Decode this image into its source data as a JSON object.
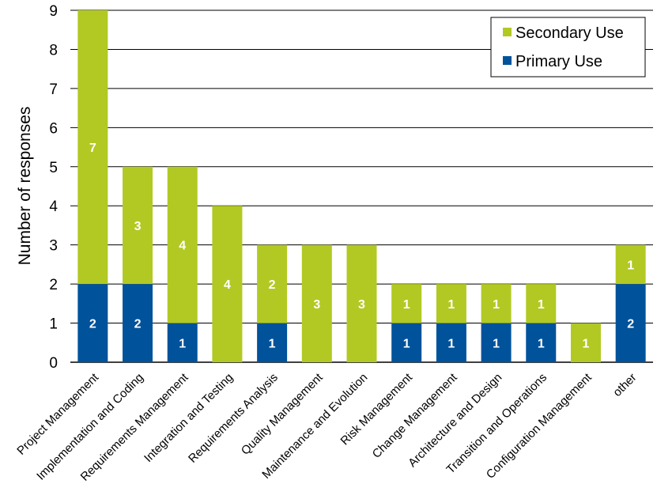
{
  "chart_data": {
    "type": "bar",
    "stacked": true,
    "title": "",
    "xlabel": "",
    "ylabel": "Number of responses",
    "ylim": [
      0,
      9
    ],
    "yticks": [
      0,
      1,
      2,
      3,
      4,
      5,
      6,
      7,
      8,
      9
    ],
    "grid": true,
    "legend_position": "top-right",
    "categories": [
      "Project Management",
      "Implementation and Coding",
      "Requirements Management",
      "Integration and Testing",
      "Requirements Analysis",
      "Quality Management",
      "Maintenance and Evolution",
      "Risk Management",
      "Change Management",
      "Architecture and Design",
      "Transition and Operations",
      "Configuration Management",
      "other"
    ],
    "series": [
      {
        "name": "Primary Use",
        "color": "#00529b",
        "values": [
          2,
          2,
          1,
          0,
          1,
          0,
          0,
          1,
          1,
          1,
          1,
          0,
          2
        ]
      },
      {
        "name": "Secondary Use",
        "color": "#b2c923",
        "values": [
          7,
          3,
          4,
          4,
          2,
          3,
          3,
          1,
          1,
          1,
          1,
          1,
          1
        ]
      }
    ],
    "legend_order": [
      "Secondary Use",
      "Primary Use"
    ]
  }
}
